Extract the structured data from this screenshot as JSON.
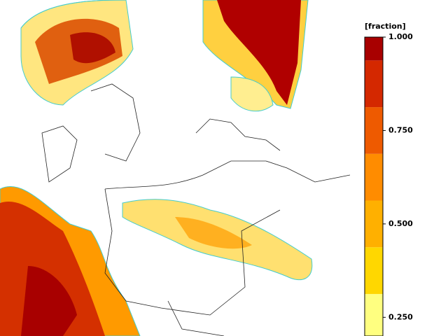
{
  "colorbar": {
    "title": "[fraction]",
    "lim": [
      0.2,
      1.0
    ],
    "bin_edges": [
      0.2,
      0.3125,
      0.4375,
      0.5625,
      0.6875,
      0.8125,
      0.9375,
      1.0
    ],
    "colors": [
      "#ffff80",
      "#ffd700",
      "#ffb000",
      "#ff8c00",
      "#ee5a00",
      "#d42800",
      "#a80000"
    ],
    "ticks": [
      {
        "value": 1.0,
        "label": "1.000"
      },
      {
        "value": 0.75,
        "label": "0.750"
      },
      {
        "value": 0.5,
        "label": "0.500"
      },
      {
        "value": 0.25,
        "label": "0.250"
      }
    ]
  }
}
